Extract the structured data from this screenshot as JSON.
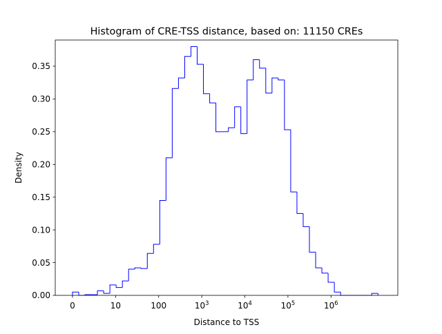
{
  "chart_data": {
    "type": "histogram",
    "title": "Histogram of CRE-TSS distance, based on: 11150 CREs",
    "xlabel": "Distance to TSS",
    "ylabel": "Density",
    "x_scale": "symlog",
    "xlim": [
      -0.4,
      7.55
    ],
    "ylim": [
      0,
      0.39
    ],
    "grid": false,
    "legend": "none",
    "x_ticks": [
      {
        "pos": 0,
        "base": "0",
        "exp": ""
      },
      {
        "pos": 1,
        "base": "10",
        "exp": ""
      },
      {
        "pos": 2,
        "base": "100",
        "exp": ""
      },
      {
        "pos": 3,
        "base": "10",
        "exp": "3"
      },
      {
        "pos": 4,
        "base": "10",
        "exp": "4"
      },
      {
        "pos": 5,
        "base": "10",
        "exp": "5"
      },
      {
        "pos": 6,
        "base": "10",
        "exp": "6"
      }
    ],
    "y_ticks": [
      "0.00",
      "0.05",
      "0.10",
      "0.15",
      "0.20",
      "0.25",
      "0.30",
      "0.35"
    ],
    "y_tick_values": [
      0,
      0.05,
      0.1,
      0.15,
      0.2,
      0.25,
      0.3,
      0.35
    ],
    "bin_edges": [
      0,
      0.1447,
      0.2894,
      0.4341,
      0.5788,
      0.7235,
      0.8682,
      1.0129,
      1.1576,
      1.3023,
      1.447,
      1.5917,
      1.7364,
      1.8811,
      2.0258,
      2.1705,
      2.3152,
      2.4599,
      2.6046,
      2.7493,
      2.894,
      3.0387,
      3.1834,
      3.3281,
      3.4728,
      3.6175,
      3.7622,
      3.9069,
      4.0516,
      4.1963,
      4.341,
      4.4857,
      4.6304,
      4.7751,
      4.9198,
      5.0645,
      5.2092,
      5.3539,
      5.4986,
      5.6433,
      5.788,
      5.9327,
      6.0774,
      6.2221,
      6.3668,
      6.5115,
      6.6562,
      6.8009,
      6.9456,
      7.0903
    ],
    "density": [
      0.005,
      0.0,
      0.001,
      0.001,
      0.007,
      0.003,
      0.016,
      0.012,
      0.022,
      0.04,
      0.042,
      0.041,
      0.064,
      0.078,
      0.145,
      0.21,
      0.316,
      0.332,
      0.365,
      0.38,
      0.353,
      0.308,
      0.294,
      0.25,
      0.25,
      0.256,
      0.288,
      0.247,
      0.329,
      0.36,
      0.347,
      0.309,
      0.332,
      0.329,
      0.253,
      0.158,
      0.125,
      0.105,
      0.066,
      0.042,
      0.034,
      0.02,
      0.005,
      0.0,
      0.0,
      0.0,
      0.0,
      0.0,
      0.003
    ],
    "line_color": "#0000ff"
  }
}
